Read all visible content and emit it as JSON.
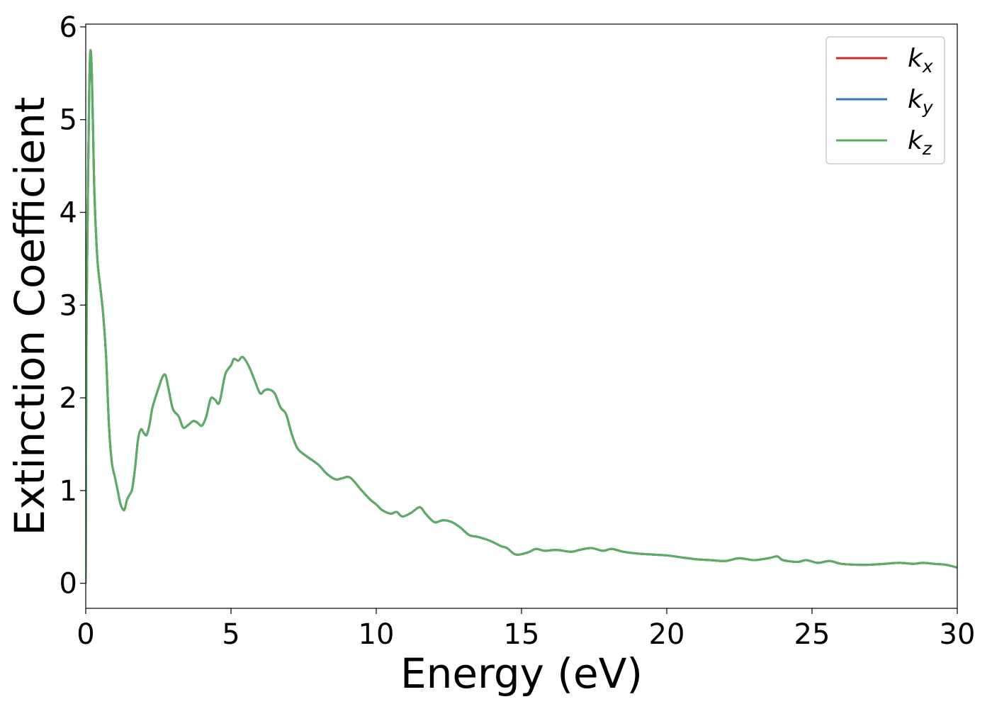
{
  "chart_data": {
    "type": "line",
    "title": "",
    "xlabel": "Energy (eV)",
    "ylabel": "Extinction Coefficient",
    "xlim": [
      0,
      30
    ],
    "ylim": [
      -0.27,
      6.03
    ],
    "xticks": [
      0,
      5,
      10,
      15,
      20,
      25,
      30
    ],
    "yticks": [
      0,
      1,
      2,
      3,
      4,
      5,
      6
    ],
    "grid": false,
    "legend_position": "top-right",
    "series": [
      {
        "name": "k",
        "subscript": "x",
        "color": "#d62728"
      },
      {
        "name": "k",
        "subscript": "y",
        "color": "#3b75af"
      },
      {
        "name": "k",
        "subscript": "z",
        "color": "#5aae61"
      }
    ],
    "x": [
      0.0,
      0.03,
      0.08,
      0.12,
      0.15,
      0.18,
      0.21,
      0.25,
      0.3,
      0.4,
      0.5,
      0.6,
      0.7,
      0.8,
      0.9,
      1.0,
      1.1,
      1.2,
      1.3,
      1.35,
      1.42,
      1.5,
      1.6,
      1.7,
      1.8,
      1.9,
      2.0,
      2.1,
      2.2,
      2.3,
      2.5,
      2.65,
      2.75,
      2.85,
      3.0,
      3.2,
      3.35,
      3.5,
      3.7,
      3.85,
      4.0,
      4.15,
      4.3,
      4.45,
      4.6,
      4.8,
      5.0,
      5.1,
      5.25,
      5.4,
      5.6,
      5.8,
      6.0,
      6.15,
      6.3,
      6.5,
      6.7,
      6.9,
      7.1,
      7.3,
      7.6,
      8.0,
      8.3,
      8.6,
      8.8,
      9.1,
      9.5,
      9.8,
      10.0,
      10.2,
      10.5,
      10.7,
      10.9,
      11.2,
      11.5,
      11.7,
      12.0,
      12.3,
      12.6,
      12.9,
      13.2,
      13.5,
      13.9,
      14.3,
      14.5,
      14.8,
      15.2,
      15.5,
      15.8,
      16.2,
      16.7,
      17.0,
      17.4,
      17.8,
      18.1,
      18.5,
      19.0,
      19.5,
      20.0,
      20.5,
      21.0,
      21.5,
      22.0,
      22.5,
      23.0,
      23.5,
      23.8,
      24.0,
      24.5,
      24.8,
      25.2,
      25.6,
      26.0,
      26.5,
      27.0,
      27.5,
      28.0,
      28.5,
      28.8,
      29.2,
      29.6,
      30.0
    ],
    "values": [
      0.0,
      2.9,
      4.4,
      5.3,
      5.7,
      5.72,
      5.5,
      4.9,
      4.2,
      3.5,
      3.2,
      2.9,
      2.45,
      1.7,
      1.3,
      1.15,
      1.0,
      0.85,
      0.79,
      0.81,
      0.9,
      0.95,
      1.02,
      1.25,
      1.55,
      1.66,
      1.62,
      1.6,
      1.72,
      1.9,
      2.1,
      2.23,
      2.24,
      2.1,
      1.88,
      1.8,
      1.68,
      1.7,
      1.75,
      1.73,
      1.7,
      1.8,
      1.99,
      1.98,
      1.95,
      2.25,
      2.35,
      2.42,
      2.4,
      2.44,
      2.35,
      2.2,
      2.05,
      2.08,
      2.09,
      2.05,
      1.9,
      1.82,
      1.6,
      1.45,
      1.37,
      1.28,
      1.18,
      1.12,
      1.13,
      1.14,
      1.0,
      0.9,
      0.85,
      0.79,
      0.75,
      0.77,
      0.72,
      0.76,
      0.82,
      0.75,
      0.66,
      0.68,
      0.66,
      0.6,
      0.52,
      0.5,
      0.46,
      0.4,
      0.38,
      0.31,
      0.33,
      0.37,
      0.35,
      0.36,
      0.34,
      0.36,
      0.38,
      0.35,
      0.37,
      0.34,
      0.32,
      0.31,
      0.3,
      0.28,
      0.26,
      0.25,
      0.24,
      0.27,
      0.25,
      0.27,
      0.29,
      0.25,
      0.23,
      0.25,
      0.22,
      0.24,
      0.21,
      0.2,
      0.2,
      0.21,
      0.22,
      0.21,
      0.22,
      0.21,
      0.2,
      0.17
    ]
  }
}
